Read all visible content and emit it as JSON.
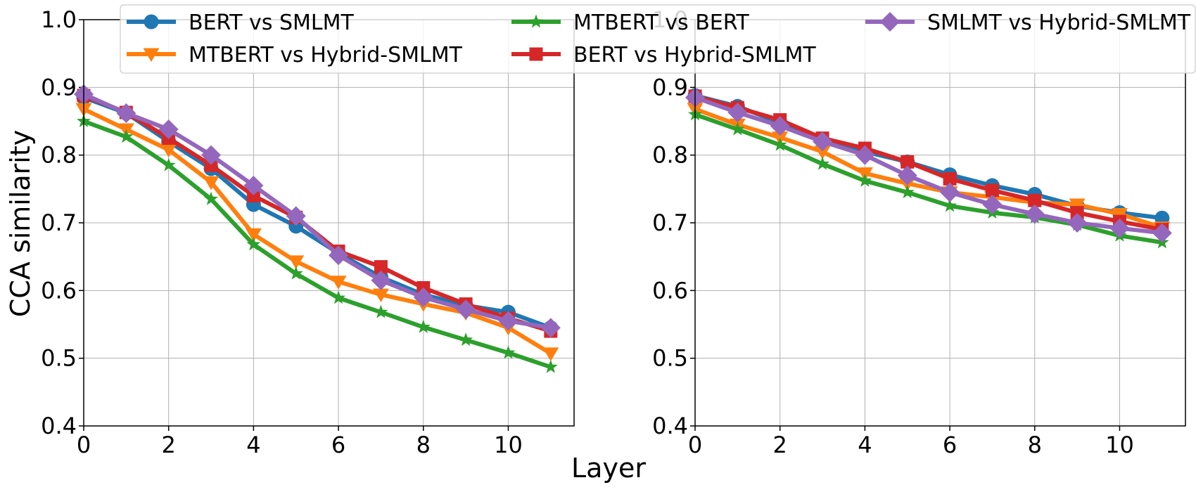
{
  "chart_data": {
    "type": "line",
    "ylabel": "CCA similarity",
    "xlabel": "Layer",
    "legend_location": "top",
    "colors": {
      "blue": "#1f77b4",
      "orange": "#ff7f0e",
      "green": "#2ca02c",
      "red": "#d62728",
      "purple": "#9467bd"
    },
    "legend": [
      {
        "key": "bert_smlmt",
        "name": "BERT vs SMLMT",
        "color": "#1f77b4",
        "marker": "circle"
      },
      {
        "key": "mtbert_hybrid",
        "name": "MTBERT vs Hybrid-SMLMT",
        "color": "#ff7f0e",
        "marker": "triangle-down"
      },
      {
        "key": "mtbert_bert",
        "name": "MTBERT vs BERT",
        "color": "#2ca02c",
        "marker": "star"
      },
      {
        "key": "bert_hybrid",
        "name": "BERT vs Hybrid-SMLMT",
        "color": "#d62728",
        "marker": "square"
      },
      {
        "key": "smlmt_hybrid",
        "name": "SMLMT vs Hybrid-SMLMT",
        "color": "#9467bd",
        "marker": "diamond"
      }
    ],
    "panels": [
      {
        "x": [
          0,
          1,
          2,
          3,
          4,
          5,
          6,
          7,
          8,
          9,
          10,
          11
        ],
        "xlim": [
          0,
          11.55
        ],
        "ylim": [
          0.4,
          1.0
        ],
        "xticks": [
          0,
          2,
          4,
          6,
          8,
          10
        ],
        "xtick_labels": [
          "0",
          "2",
          "4",
          "6",
          "8",
          "10"
        ],
        "yticks": [
          0.4,
          0.5,
          0.6,
          0.7,
          0.8,
          0.9,
          1.0
        ],
        "ytick_labels": [
          "0.4",
          "0.5",
          "0.6",
          "0.7",
          "0.8",
          "0.9",
          "1.0"
        ],
        "series": {
          "bert_smlmt": [
            0.885,
            0.862,
            0.82,
            0.78,
            0.727,
            0.695,
            0.655,
            0.62,
            0.594,
            0.578,
            0.568,
            0.545
          ],
          "mtbert_hybrid": [
            0.868,
            0.838,
            0.808,
            0.76,
            0.683,
            0.643,
            0.613,
            0.594,
            0.58,
            0.567,
            0.545,
            0.507
          ],
          "mtbert_bert": [
            0.85,
            0.827,
            0.785,
            0.735,
            0.668,
            0.625,
            0.589,
            0.568,
            0.546,
            0.527,
            0.508,
            0.487
          ],
          "bert_hybrid": [
            0.888,
            0.863,
            0.825,
            0.785,
            0.74,
            0.708,
            0.658,
            0.635,
            0.604,
            0.58,
            0.559,
            0.54
          ],
          "smlmt_hybrid": [
            0.89,
            0.862,
            0.838,
            0.8,
            0.755,
            0.71,
            0.652,
            0.615,
            0.59,
            0.572,
            0.555,
            0.545
          ]
        }
      },
      {
        "x": [
          0,
          1,
          2,
          3,
          4,
          5,
          6,
          7,
          8,
          9,
          10,
          11
        ],
        "xlim": [
          0,
          11.55
        ],
        "ylim": [
          0.4,
          1.0
        ],
        "xticks": [
          0,
          2,
          4,
          6,
          8,
          10
        ],
        "xtick_labels": [
          "0",
          "2",
          "4",
          "6",
          "8",
          "10"
        ],
        "yticks": [
          0.4,
          0.5,
          0.6,
          0.7,
          0.8,
          0.9,
          1.0
        ],
        "ytick_labels": [
          "0.4",
          "0.5",
          "0.6",
          "0.7",
          "0.8",
          "0.9",
          "1.0"
        ],
        "series": {
          "bert_smlmt": [
            0.888,
            0.872,
            0.848,
            0.82,
            0.805,
            0.79,
            0.771,
            0.755,
            0.742,
            0.725,
            0.715,
            0.707
          ],
          "mtbert_hybrid": [
            0.868,
            0.845,
            0.826,
            0.805,
            0.773,
            0.758,
            0.745,
            0.738,
            0.73,
            0.727,
            0.713,
            0.693
          ],
          "mtbert_bert": [
            0.86,
            0.838,
            0.815,
            0.787,
            0.762,
            0.745,
            0.725,
            0.715,
            0.708,
            0.697,
            0.681,
            0.671
          ],
          "bert_hybrid": [
            0.887,
            0.87,
            0.852,
            0.825,
            0.81,
            0.79,
            0.765,
            0.748,
            0.733,
            0.715,
            0.702,
            0.69
          ],
          "smlmt_hybrid": [
            0.885,
            0.863,
            0.843,
            0.82,
            0.8,
            0.77,
            0.745,
            0.727,
            0.713,
            0.7,
            0.692,
            0.685
          ]
        }
      }
    ]
  }
}
